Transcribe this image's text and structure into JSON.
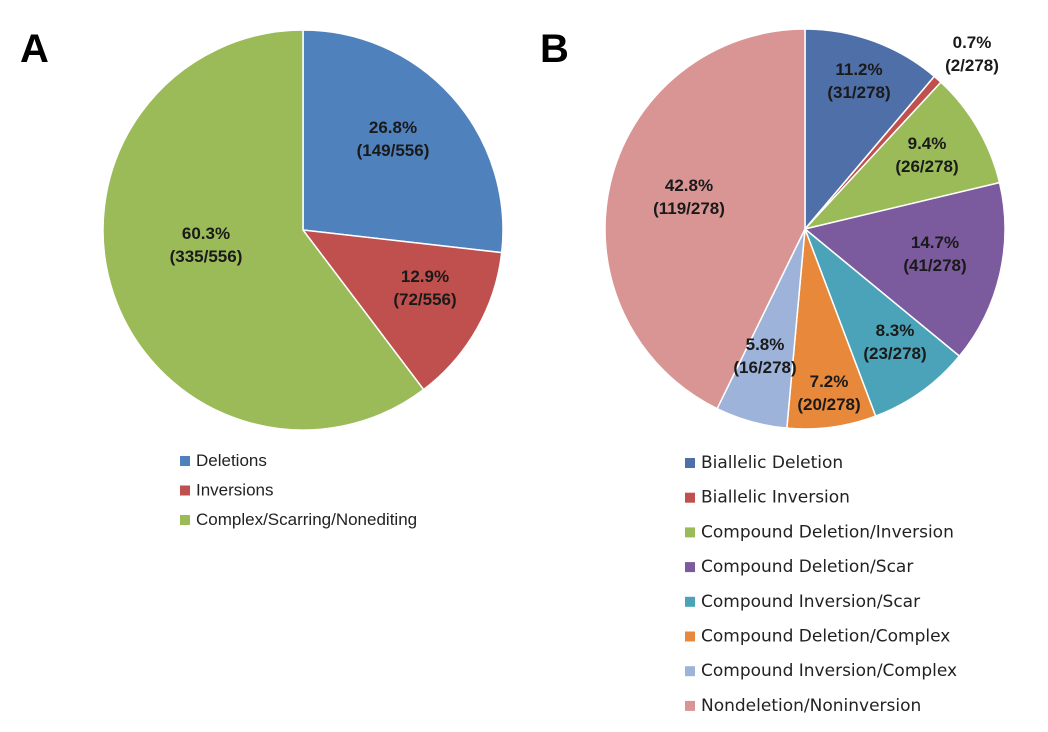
{
  "chart_data": [
    {
      "type": "pie",
      "panel_label": "A",
      "colors": [
        "#4f81bd",
        "#c0504d",
        "#9bbb59"
      ],
      "slices": [
        {
          "name": "Deletions",
          "pct": 26.8,
          "label_pct": "26.8%",
          "label_frac": "(149/556)"
        },
        {
          "name": "Inversions",
          "pct": 12.9,
          "label_pct": "12.9%",
          "label_frac": "(72/556)"
        },
        {
          "name": "Complex/Scarring/Nonediting",
          "pct": 60.3,
          "label_pct": "60.3%",
          "label_frac": "(335/556)"
        }
      ],
      "legend": [
        "Deletions",
        "Inversions",
        "Complex/Scarring/Nonediting"
      ],
      "legend_position": "bottom"
    },
    {
      "type": "pie",
      "panel_label": "B",
      "colors": [
        "#4f6fa8",
        "#c0504d",
        "#9bbb59",
        "#7b5a9e",
        "#4aa3b8",
        "#e8883a",
        "#9db3d9",
        "#d99594"
      ],
      "slices": [
        {
          "name": "Biallelic Deletion",
          "pct": 11.2,
          "label_pct": "11.2%",
          "label_frac": "(31/278)"
        },
        {
          "name": "Biallelic Inversion",
          "pct": 0.7,
          "label_pct": "0.7%",
          "label_frac": "(2/278)"
        },
        {
          "name": "Compound Deletion/Inversion",
          "pct": 9.4,
          "label_pct": "9.4%",
          "label_frac": "(26/278)"
        },
        {
          "name": "Compound Deletion/Scar",
          "pct": 14.7,
          "label_pct": "14.7%",
          "label_frac": "(41/278)"
        },
        {
          "name": "Compound Inversion/Scar",
          "pct": 8.3,
          "label_pct": "8.3%",
          "label_frac": "(23/278)"
        },
        {
          "name": "Compound Deletion/Complex",
          "pct": 7.2,
          "label_pct": "7.2%",
          "label_frac": "(20/278)"
        },
        {
          "name": "Compound Inversion/Complex",
          "pct": 5.8,
          "label_pct": "5.8%",
          "label_frac": "(16/278)"
        },
        {
          "name": "Nondeletion/Noninversion",
          "pct": 42.8,
          "label_pct": "42.8%",
          "label_frac": "(119/278)"
        }
      ],
      "legend": [
        "Biallelic Deletion",
        "Biallelic Inversion",
        "Compound Deletion/Inversion",
        "Compound Deletion/Scar",
        "Compound Inversion/Scar",
        "Compound Deletion/Complex",
        "Compound Inversion/Complex",
        "Nondeletion/Noninversion"
      ],
      "legend_position": "bottom"
    }
  ]
}
